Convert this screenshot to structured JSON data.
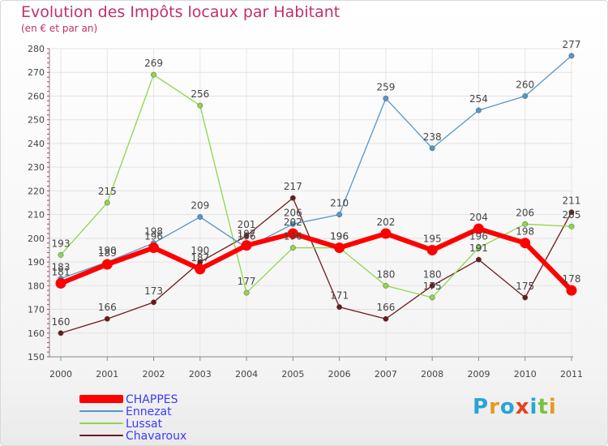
{
  "title": "Evolution des Impôts locaux par Habitant",
  "subtitle": "(en € et par an)",
  "logo": {
    "text": "Proxiti",
    "colors": [
      "#2aa3d8",
      "#e89a1c",
      "#2aa3d8",
      "#e8401c",
      "#2aa3d8",
      "#7ac142",
      "#e89a1c"
    ]
  },
  "chart_data": {
    "type": "line",
    "categories": [
      "2000",
      "2001",
      "2002",
      "2003",
      "2004",
      "2005",
      "2006",
      "2007",
      "2008",
      "2009",
      "2010",
      "2011"
    ],
    "ylim": [
      150,
      280
    ],
    "yticks": [
      150,
      160,
      170,
      180,
      190,
      200,
      210,
      220,
      230,
      240,
      250,
      260,
      270,
      280
    ],
    "series": [
      {
        "name": "Chavaroux",
        "color": "#6b1a1a",
        "values": [
          160,
          166,
          173,
          190,
          201,
          217,
          171,
          166,
          180,
          191,
          175,
          211
        ],
        "labels": [
          "160",
          "166",
          "173",
          "190",
          "201",
          "217",
          "171",
          "166",
          "180",
          "191",
          "175",
          "211"
        ]
      },
      {
        "name": "Lussat",
        "color": "#8fd64a",
        "values": [
          193,
          215,
          269,
          256,
          177,
          196,
          196,
          180,
          175,
          196,
          206,
          205
        ],
        "labels": [
          "193",
          "215",
          "269",
          "256",
          "177",
          "196",
          "196",
          "180",
          "175",
          "196",
          "206",
          "205"
        ]
      },
      {
        "name": "Ennezat",
        "color": "#5596c9",
        "values": [
          183,
          190,
          198,
          209,
          196,
          206,
          210,
          259,
          238,
          254,
          260,
          277
        ],
        "labels": [
          "183",
          "190",
          "198",
          "209",
          "196",
          "206",
          "210",
          "259",
          "238",
          "254",
          "260",
          "277"
        ]
      },
      {
        "name": "CHAPPES",
        "color": "#ff0000",
        "values": [
          181,
          189,
          196,
          187,
          197,
          202,
          196,
          202,
          195,
          204,
          198,
          178
        ],
        "labels": [
          "181",
          "189",
          "196",
          "187",
          "197",
          "202",
          "196",
          "202",
          "195",
          "204",
          "198",
          "178"
        ]
      }
    ],
    "legend": [
      "CHAPPES",
      "Ennezat",
      "Lussat",
      "Chavaroux"
    ]
  }
}
